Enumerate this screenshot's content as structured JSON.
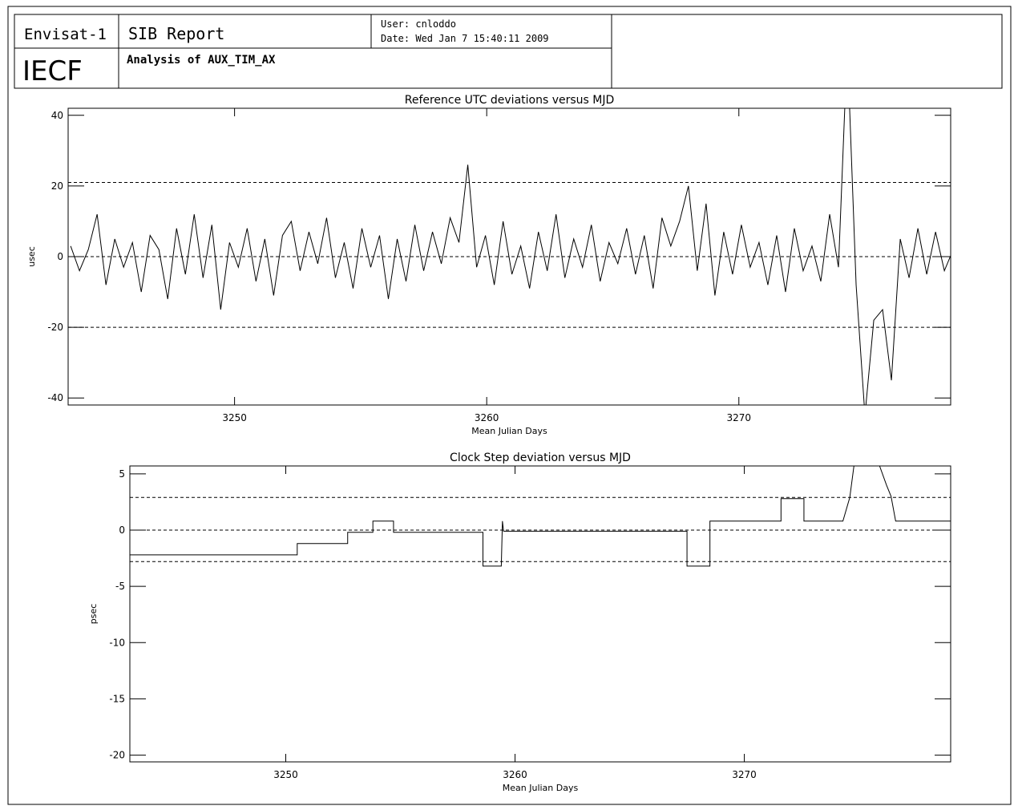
{
  "header": {
    "mission": "Envisat-1",
    "report": "SIB Report",
    "user": "User: cnloddo",
    "date": "Date: Wed Jan  7 15:40:11 2009",
    "facility": "IECF",
    "analysis": "Analysis of AUX_TIM_AX"
  },
  "chart_data": [
    {
      "type": "line",
      "title": "Reference UTC deviations versus MJD",
      "x_label": "Mean Julian Days",
      "y_label": "usec",
      "color": "#000000",
      "xlim": [
        3243.4,
        3278.4
      ],
      "xticks": [
        3250,
        3260,
        3270
      ],
      "ylim": [
        -42,
        42
      ],
      "yticks": [
        -40,
        -20,
        0,
        20,
        40
      ],
      "hlines": [
        21,
        0,
        -20
      ],
      "x": [
        3243.5,
        3243.85,
        3244.2,
        3244.55,
        3244.9,
        3245.25,
        3245.6,
        3245.95,
        3246.3,
        3246.65,
        3247,
        3247.35,
        3247.7,
        3248.05,
        3248.4,
        3248.75,
        3249.1,
        3249.45,
        3249.8,
        3250.15,
        3250.5,
        3250.85,
        3251.2,
        3251.55,
        3251.9,
        3252.25,
        3252.6,
        3252.95,
        3253.3,
        3253.65,
        3254,
        3254.35,
        3254.7,
        3255.05,
        3255.4,
        3255.75,
        3256.1,
        3256.45,
        3256.8,
        3257.15,
        3257.5,
        3257.85,
        3258.2,
        3258.55,
        3258.9,
        3259.25,
        3259.6,
        3259.95,
        3260.3,
        3260.65,
        3261,
        3261.35,
        3261.7,
        3262.05,
        3262.4,
        3262.75,
        3263.1,
        3263.45,
        3263.8,
        3264.15,
        3264.5,
        3264.85,
        3265.2,
        3265.55,
        3265.9,
        3266.25,
        3266.6,
        3266.95,
        3267.3,
        3267.65,
        3268,
        3268.35,
        3268.7,
        3269.05,
        3269.4,
        3269.75,
        3270.1,
        3270.45,
        3270.8,
        3271.15,
        3271.5,
        3271.85,
        3272.2,
        3272.55,
        3272.9,
        3273.25,
        3273.6,
        3273.95,
        3274.3,
        3274.65,
        3275,
        3275.35,
        3275.7,
        3276.05,
        3276.4,
        3276.75,
        3277.1,
        3277.45,
        3277.8,
        3278.15,
        3278.5
      ],
      "values": [
        3,
        -4,
        2,
        12,
        -8,
        5,
        -3,
        4,
        -10,
        6,
        2,
        -12,
        8,
        -5,
        12,
        -6,
        9,
        -15,
        4,
        -3,
        8,
        -7,
        5,
        -11,
        6,
        10,
        -4,
        7,
        -2,
        11,
        -6,
        4,
        -9,
        8,
        -3,
        6,
        -12,
        5,
        -7,
        9,
        -4,
        7,
        -2,
        11,
        4,
        26,
        -3,
        6,
        -8,
        10,
        -5,
        3,
        -9,
        7,
        -4,
        12,
        -6,
        5,
        -3,
        9,
        -7,
        4,
        -2,
        8,
        -5,
        6,
        -9,
        11,
        3,
        10,
        20,
        -4,
        15,
        -11,
        7,
        -5,
        9,
        -3,
        4,
        -8,
        6,
        -10,
        8,
        -4,
        3,
        -7,
        12,
        -3,
        60,
        -8,
        -45,
        -18,
        -15,
        -35,
        5,
        -6,
        8,
        -5,
        7,
        -4,
        2
      ]
    },
    {
      "type": "line",
      "title": "Clock Step deviation versus MJD",
      "x_label": "Mean Julian Days",
      "y_label": "psec",
      "color": "#000000",
      "xlim": [
        3243.2,
        3279.0
      ],
      "xticks": [
        3250,
        3260,
        3270
      ],
      "ylim": [
        -20.6,
        5.7
      ],
      "yticks": [
        -20,
        -15,
        -10,
        -5,
        0,
        5
      ],
      "hlines": [
        2.9,
        0,
        -2.8
      ],
      "x": [
        3243.2,
        3250.5,
        3250.5,
        3252.7,
        3252.7,
        3253.8,
        3253.8,
        3254.7,
        3254.7,
        3258.6,
        3258.6,
        3259.4,
        3259.45,
        3259.5,
        3267.5,
        3267.5,
        3268.5,
        3268.5,
        3271.6,
        3271.6,
        3272.6,
        3272.6,
        3274.3,
        3274.6,
        3274.8,
        3275.9,
        3276.2,
        3276.4,
        3276.6,
        3279.0
      ],
      "values": [
        -2.2,
        -2.2,
        -1.2,
        -1.2,
        -0.2,
        -0.2,
        0.8,
        0.8,
        -0.2,
        -0.2,
        -3.2,
        -3.2,
        0.8,
        -0.1,
        -0.1,
        -3.2,
        -3.2,
        0.8,
        0.8,
        2.8,
        2.8,
        0.8,
        0.8,
        2.9,
        6,
        5.7,
        4,
        3,
        0.8,
        0.8
      ]
    }
  ]
}
